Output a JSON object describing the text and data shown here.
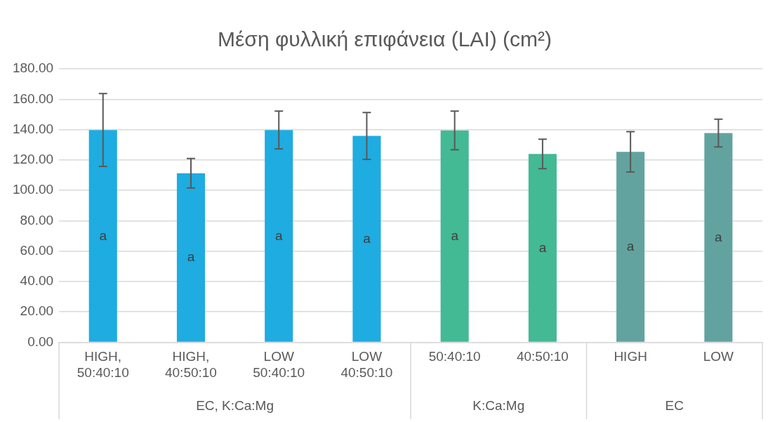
{
  "chart_data": {
    "type": "bar",
    "title": "Μέση φυλλική επιφάνεια (LAI) (cm²)",
    "categories": [
      "HIGH, 50:40:10",
      "HIGH, 40:50:10",
      "LOW 50:40:10",
      "LOW 40:50:10",
      "50:40:10",
      "40:50:10",
      "HIGH",
      "LOW"
    ],
    "values": [
      139.7,
      111.2,
      139.7,
      135.8,
      139.4,
      124.0,
      125.3,
      137.7
    ],
    "colors": [
      "#1eace1",
      "#1eace1",
      "#1eace1",
      "#1eace1",
      "#43b994",
      "#43b994",
      "#62a39f",
      "#62a39f"
    ],
    "errors": [
      24.0,
      9.7,
      12.4,
      15.4,
      12.7,
      9.7,
      13.3,
      9.1
    ],
    "value_labels": [
      "a",
      "a",
      "a",
      "a",
      "a",
      "a",
      "a",
      "a"
    ],
    "annotations": [
      "EC, K:Ca:Mg",
      "K:Ca:Mg",
      "EC"
    ],
    "ylim": [
      0,
      180
    ],
    "yticks": [
      {
        "value": 0,
        "label": "0.00"
      },
      {
        "value": 20,
        "label": "20.00"
      },
      {
        "value": 40,
        "label": "40.00"
      },
      {
        "value": 60,
        "label": "60.00"
      },
      {
        "value": 80,
        "label": "80.00"
      },
      {
        "value": 100,
        "label": "100.00"
      },
      {
        "value": 120,
        "label": "120.00"
      },
      {
        "value": 140,
        "label": "140.00"
      },
      {
        "value": 160,
        "label": "160.00"
      },
      {
        "value": 180,
        "label": "180.00"
      }
    ],
    "grid": "y"
  }
}
